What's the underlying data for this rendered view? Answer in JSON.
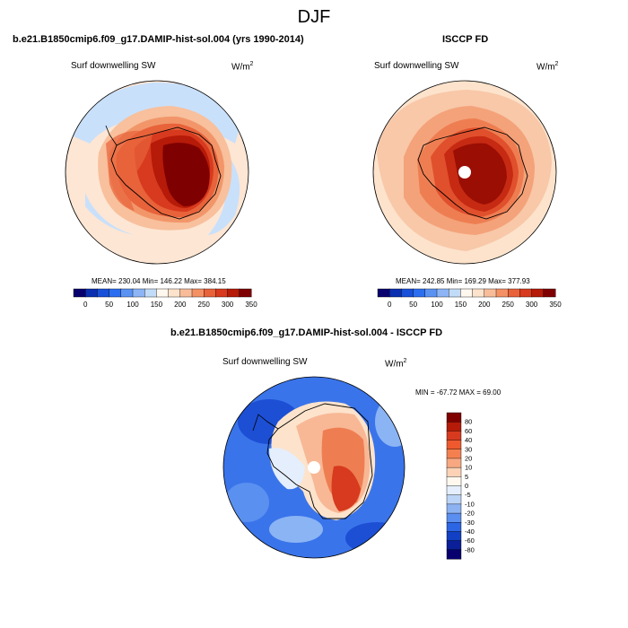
{
  "title": "DJF",
  "panels": [
    {
      "id": "model",
      "title": "b.e21.B1850cmip6.f09_g17.DAMIP-hist-sol.004 (yrs 1990-2014)",
      "variable": "Surf downwelling SW",
      "units_base": "W/m",
      "units_exp": "2",
      "stats": "MEAN= 230.04  Min= 146.22  Max= 384.15",
      "colorbar_ticks": [
        "0",
        "50",
        "100",
        "150",
        "200",
        "250",
        "300",
        "350"
      ]
    },
    {
      "id": "obs",
      "title": "ISCCP FD",
      "variable": "Surf downwelling SW",
      "units_base": "W/m",
      "units_exp": "2",
      "stats": "MEAN= 242.85  Min= 169.29  Max= 377.93",
      "colorbar_ticks": [
        "0",
        "50",
        "100",
        "150",
        "200",
        "250",
        "300",
        "350"
      ]
    },
    {
      "id": "diff",
      "title": "b.e21.B1850cmip6.f09_g17.DAMIP-hist-sol.004 - ISCCP FD",
      "variable": "Surf downwelling SW",
      "units_base": "W/m",
      "units_exp": "2",
      "stats": "MIN = -67.72 MAX =  69.00",
      "colorbar_ticks": [
        "80",
        "60",
        "40",
        "30",
        "20",
        "10",
        "5",
        "0",
        "-5",
        "-10",
        "-20",
        "-30",
        "-40",
        "-60",
        "-80"
      ]
    }
  ],
  "colors": {
    "seq": [
      "#08006e",
      "#0a2fb0",
      "#1850d8",
      "#2c6ef0",
      "#5a92f2",
      "#8db4f5",
      "#c2dcf8",
      "#fff8ee",
      "#fde3cc",
      "#f8bc98",
      "#f39064",
      "#e8623a",
      "#d73a1e",
      "#b61a08",
      "#7f0000"
    ],
    "diff": [
      "#7f0000",
      "#b61a08",
      "#d73a1e",
      "#ee5a2e",
      "#f48050",
      "#f8a880",
      "#fcd2b6",
      "#fff8ee",
      "#e4eefc",
      "#bcd4f6",
      "#8cb2f2",
      "#5a8ef0",
      "#2c66e4",
      "#1140c4",
      "#0a1f98",
      "#08006e"
    ]
  }
}
